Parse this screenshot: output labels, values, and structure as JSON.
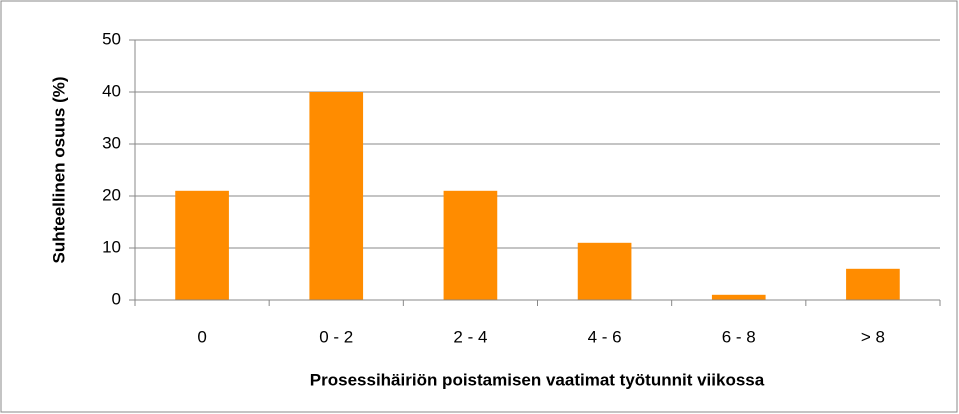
{
  "chart_data": {
    "type": "bar",
    "xlabel": "Prosessihäiriön poistamisen vaatimat työtunnit viikossa",
    "ylabel": "Suhteellinen osuus (%)",
    "categories": [
      "0",
      "0 - 2",
      "2 - 4",
      "4 - 6",
      "6 - 8",
      "> 8"
    ],
    "values": [
      21,
      40,
      21,
      11,
      1,
      6
    ],
    "color": "#ff8c00",
    "ylim": [
      0,
      50
    ],
    "yticks": [
      0,
      10,
      20,
      30,
      40,
      50
    ],
    "grid": true
  }
}
